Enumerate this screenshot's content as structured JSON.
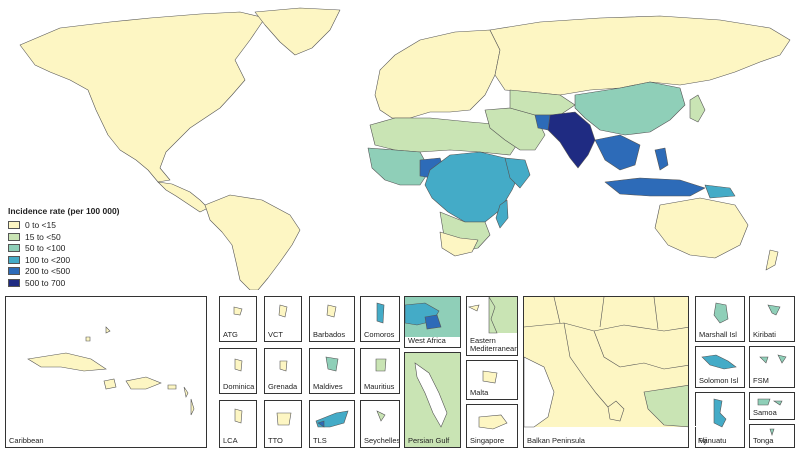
{
  "legend": {
    "title": "Incidence rate (per 100 000)",
    "items": [
      {
        "label": "0 to <15",
        "color": "#fdf6c3"
      },
      {
        "label": "15 to <50",
        "color": "#c9e4b4"
      },
      {
        "label": "50 to <100",
        "color": "#8fcfb8"
      },
      {
        "label": "100 to <200",
        "color": "#44abc7"
      },
      {
        "label": "200 to <500",
        "color": "#2d6bb8"
      },
      {
        "label": "500 to 700",
        "color": "#1f2b82"
      }
    ]
  },
  "insets": {
    "caribbean": "Caribbean",
    "atg": "ATG",
    "vct": "VCT",
    "barbados": "Barbados",
    "comoros": "Comoros",
    "dominica": "Dominica",
    "grenada": "Grenada",
    "maldives": "Maldives",
    "mauritius": "Mauritius",
    "lca": "LCA",
    "tto": "TTO",
    "tls": "TLS",
    "seychelles": "Seychelles",
    "west_africa": "West Africa",
    "eastern_mediterranean": "Eastern Mediterranean",
    "persian_gulf": "Persian Gulf",
    "malta": "Malta",
    "singapore": "Singapore",
    "balkan_peninsula": "Balkan Peninsula",
    "marshall_isl": "Marshall Isl",
    "kiribati": "Kiribati",
    "solomon_isl": "Solomon Isl",
    "fsm": "FSM",
    "vanuatu": "Vanuatu",
    "samoa": "Samoa",
    "fiji": "Fiji",
    "tonga": "Tonga"
  }
}
